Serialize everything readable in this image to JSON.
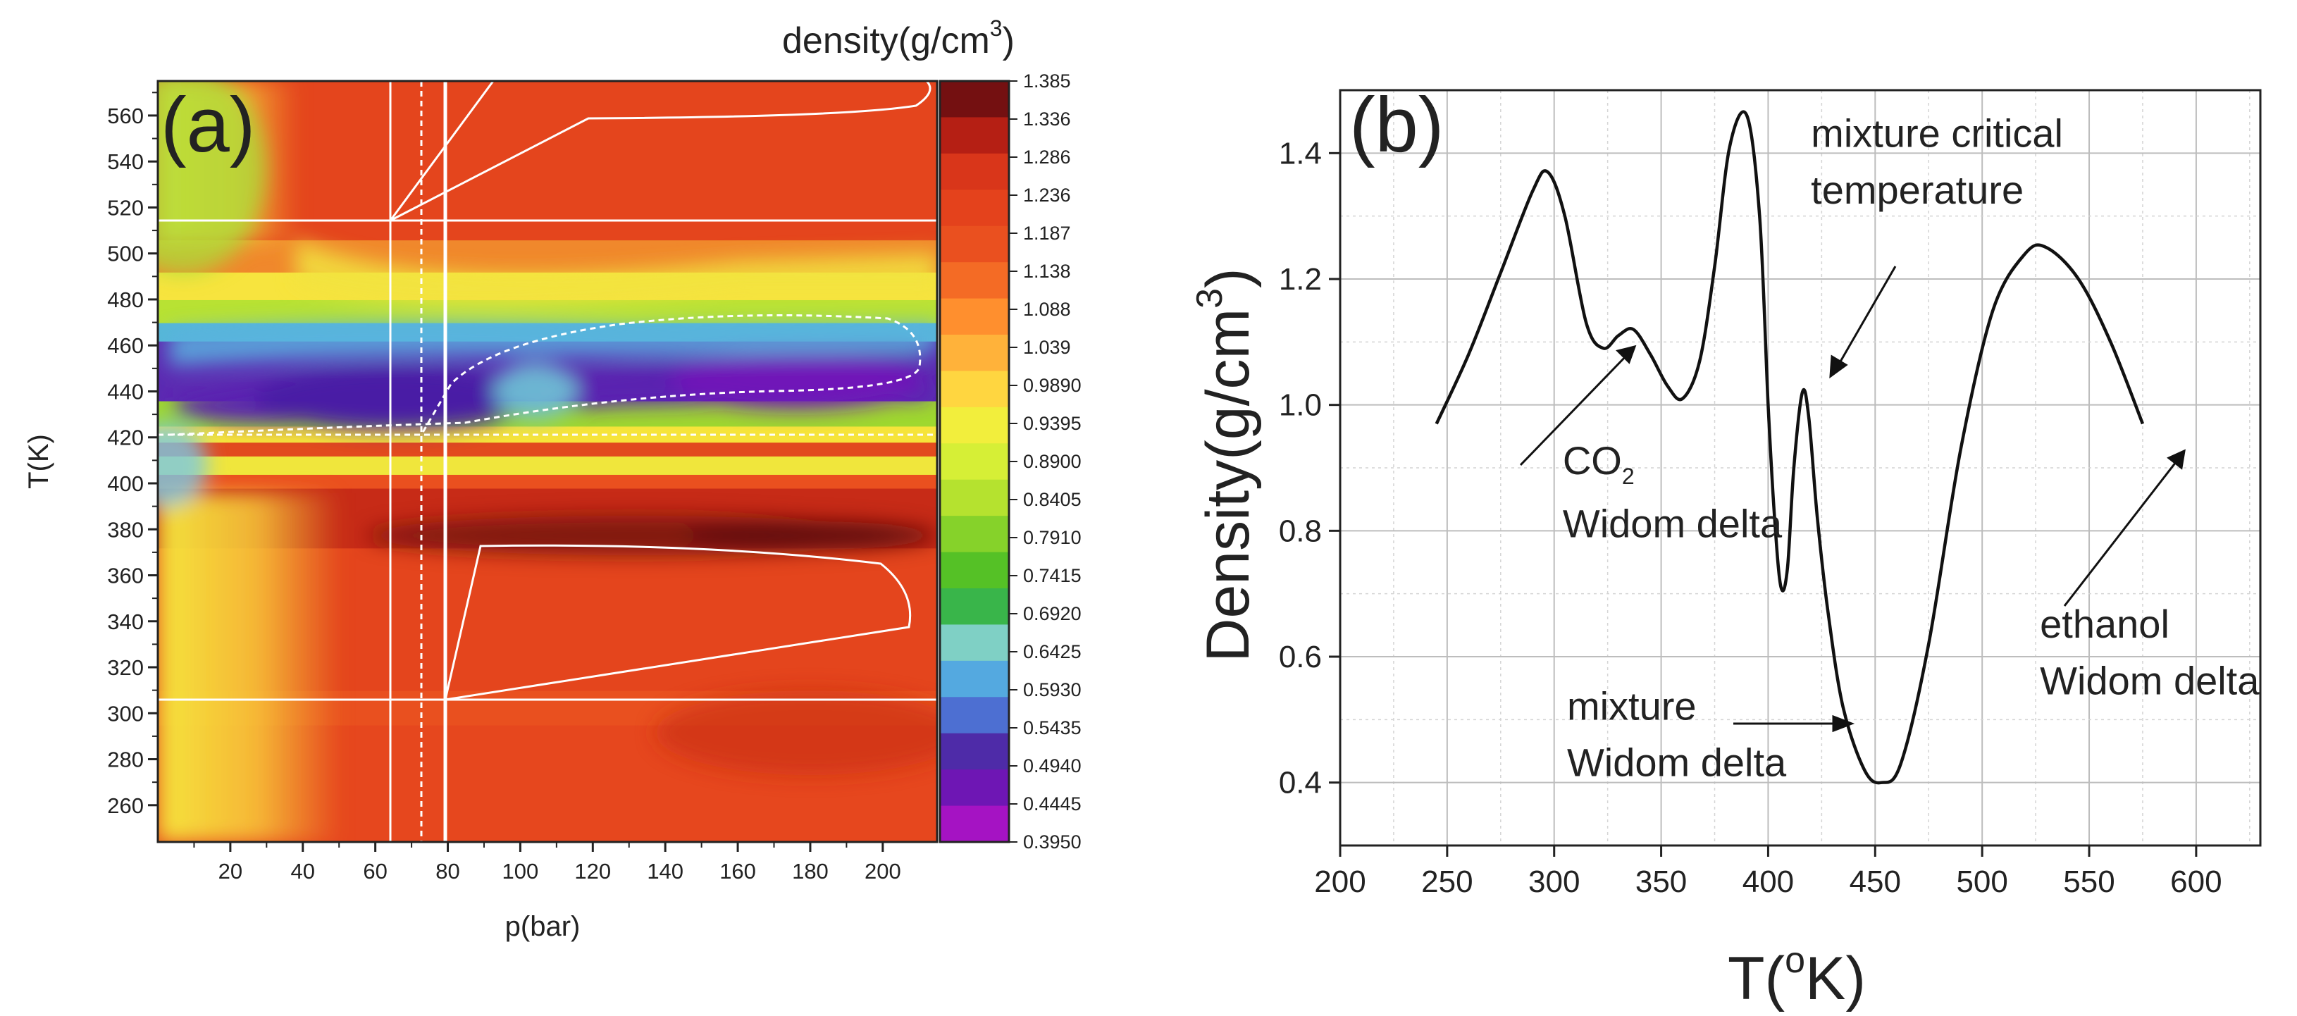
{
  "chart_data": [
    {
      "panel_label": "(a)",
      "type": "heatmap",
      "xlabel": "p(bar)",
      "ylabel": "T(K)",
      "x_ticks": [
        20,
        40,
        60,
        80,
        100,
        120,
        140,
        160,
        180,
        200
      ],
      "y_ticks": [
        260,
        280,
        300,
        320,
        340,
        360,
        380,
        400,
        420,
        440,
        460,
        480,
        500,
        520,
        540,
        560
      ],
      "xlim": [
        0,
        215
      ],
      "ylim": [
        244,
        575
      ],
      "colorbar": {
        "title": "density(g/cm",
        "title_sup": "3",
        "title_end": ")",
        "ticks": [
          "1.385",
          "1.336",
          "1.286",
          "1.236",
          "1.187",
          "1.138",
          "1.088",
          "1.039",
          "0.9890",
          "0.9395",
          "0.8900",
          "0.8405",
          "0.7910",
          "0.7415",
          "0.6920",
          "0.6425",
          "0.5930",
          "0.5435",
          "0.4940",
          "0.4445",
          "0.3950"
        ],
        "colors": [
          "#741011",
          "#b51f14",
          "#d9361a",
          "#e4421c",
          "#ea501f",
          "#f46b25",
          "#ff8f2e",
          "#ffb23a",
          "#ffd640",
          "#f2ee3c",
          "#d6ef36",
          "#b5e22f",
          "#86d22a",
          "#55c126",
          "#39b54a",
          "#7fd0c5",
          "#54a9e0",
          "#4d6fd2",
          "#4e2ba8",
          "#6e16b4",
          "#a513c3"
        ]
      },
      "background_band_colors": [
        {
          "from": 244,
          "to": 295,
          "color": "#e6471e"
        },
        {
          "from": 295,
          "to": 310,
          "color": "#e9501f"
        },
        {
          "from": 310,
          "to": 372,
          "color": "#e4451d"
        },
        {
          "from": 372,
          "to": 398,
          "color": "#c72b17"
        },
        {
          "from": 398,
          "to": 404,
          "color": "#ea501f"
        },
        {
          "from": 404,
          "to": 412,
          "color": "#f0e63c"
        },
        {
          "from": 412,
          "to": 418,
          "color": "#e24a1e"
        },
        {
          "from": 418,
          "to": 425,
          "color": "#f6e43a"
        },
        {
          "from": 425,
          "to": 436,
          "color": "#9fd82f"
        },
        {
          "from": 436,
          "to": 462,
          "color": "#5c2ab2"
        },
        {
          "from": 462,
          "to": 470,
          "color": "#56b7d8"
        },
        {
          "from": 470,
          "to": 480,
          "color": "#b8e233"
        },
        {
          "from": 480,
          "to": 492,
          "color": "#f7e43e"
        },
        {
          "from": 492,
          "to": 506,
          "color": "#f0882c"
        },
        {
          "from": 506,
          "to": 575,
          "color": "#e4451d"
        }
      ]
    },
    {
      "panel_label": "(b)",
      "type": "line",
      "xlabel": "T(",
      "xlabel_sup": "o",
      "xlabel_end": "K)",
      "ylabel": "Density(g/cm",
      "ylabel_sup": "3",
      "ylabel_end": ")",
      "xlim": [
        200,
        630
      ],
      "ylim": [
        0.3,
        1.5
      ],
      "x_ticks": [
        200,
        250,
        300,
        350,
        400,
        450,
        500,
        550,
        600
      ],
      "y_ticks": [
        0.4,
        0.6,
        0.8,
        1.0,
        1.2,
        1.4
      ],
      "grid": true,
      "series": [
        {
          "x": [
            245,
            260,
            275,
            290,
            297,
            305,
            315,
            323,
            330,
            337,
            345,
            353,
            360,
            368,
            375,
            382,
            390,
            396,
            400,
            403,
            406,
            409,
            412,
            416,
            419,
            423,
            428,
            435,
            445,
            453,
            462,
            475,
            490,
            505,
            520,
            530,
            545,
            560,
            575
          ],
          "y": [
            0.97,
            1.08,
            1.21,
            1.34,
            1.37,
            1.3,
            1.13,
            1.09,
            1.11,
            1.12,
            1.08,
            1.03,
            1.01,
            1.07,
            1.22,
            1.41,
            1.46,
            1.3,
            1.0,
            0.82,
            0.71,
            0.74,
            0.9,
            1.02,
            0.98,
            0.82,
            0.67,
            0.52,
            0.42,
            0.4,
            0.43,
            0.62,
            0.93,
            1.15,
            1.24,
            1.25,
            1.2,
            1.1,
            0.97
          ]
        }
      ],
      "annotations": [
        {
          "text": "mixture critical",
          "x": 420,
          "y": 1.41
        },
        {
          "text": "temperature",
          "x": 420,
          "y": 1.32
        },
        {
          "text": "CO",
          "sub": "2",
          "x": 304,
          "y": 0.89
        },
        {
          "text": "Widom delta",
          "x": 304,
          "y": 0.79
        },
        {
          "text": "mixture",
          "x": 306,
          "y": 0.5
        },
        {
          "text": "Widom delta",
          "x": 306,
          "y": 0.41
        },
        {
          "text": "ethanol",
          "x": 527,
          "y": 0.63
        },
        {
          "text": "Widom delta",
          "x": 527,
          "y": 0.54
        }
      ]
    }
  ]
}
